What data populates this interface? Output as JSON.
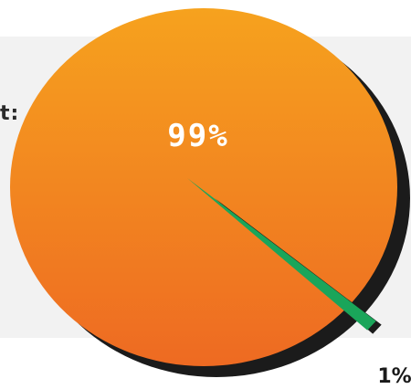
{
  "panel": {
    "visible_text": "t:"
  },
  "chart_data": {
    "type": "pie",
    "title": "",
    "categories": [
      "",
      ""
    ],
    "values": [
      99,
      1
    ],
    "labels": [
      "99%",
      "1%"
    ],
    "colors": {
      "major_top": "#f6a21e",
      "major_bottom": "#ee6a22",
      "minor": "#1aa55a",
      "minor_light": "#33c26f",
      "shadow": "#1b1b1b",
      "panel": "#f2f2f2"
    }
  }
}
